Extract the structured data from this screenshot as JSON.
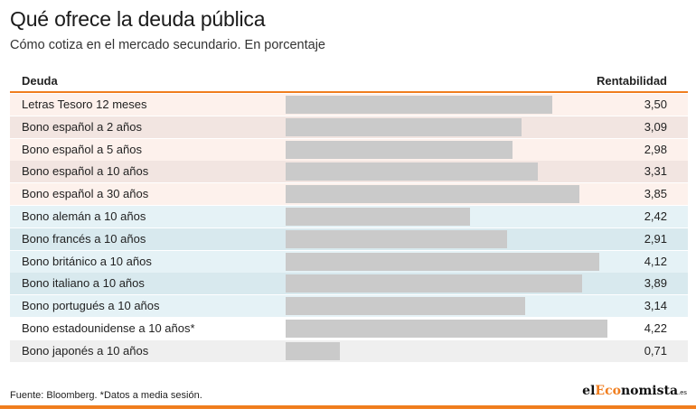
{
  "title": "Qué ofrece la deuda pública",
  "subtitle": "Cómo cotiza en el mercado secundario. En porcentaje",
  "table": {
    "col_name_header": "Deuda",
    "col_value_header": "Rentabilidad"
  },
  "footer": {
    "source": "Fuente: Bloomberg. *Datos a media sesión.",
    "logo_prefix": "el",
    "logo_accent": "Eco",
    "logo_suffix": "nomista",
    "logo_tld": ".es"
  },
  "colors": {
    "accent": "#f07d1e",
    "bar": "#cacaca",
    "row_bg_spain_a": "#fdf1ec",
    "row_bg_spain_b": "#f2e5e1",
    "row_bg_europe_a": "#e5f2f6",
    "row_bg_europe_b": "#d8e9ee",
    "row_bg_other_a": "#ffffff",
    "row_bg_other_b": "#efefef"
  },
  "chart_data": {
    "type": "bar",
    "orientation": "horizontal",
    "title": "Qué ofrece la deuda pública",
    "subtitle": "Cómo cotiza en el mercado secundario. En porcentaje",
    "categories": [
      "Letras Tesoro 12 meses",
      "Bono español a 2 años",
      "Bono español a 5 años",
      "Bono español a 10 años",
      "Bono español a 30 años",
      "Bono alemán a 10 años",
      "Bono francés a 10 años",
      "Bono británico a 10 años",
      "Bono italiano a 10 años",
      "Bono portugués a 10 años",
      "Bono estadounidense a 10 años*",
      "Bono japonés a 10 años"
    ],
    "values": [
      3.5,
      3.09,
      2.98,
      3.31,
      3.85,
      2.42,
      2.91,
      4.12,
      3.89,
      3.14,
      4.22,
      0.71
    ],
    "value_labels": [
      "3,50",
      "3,09",
      "2,98",
      "3,31",
      "3,85",
      "2,42",
      "2,91",
      "4,12",
      "3,89",
      "3,14",
      "4,22",
      "0,71"
    ],
    "groups": [
      "spain",
      "spain",
      "spain",
      "spain",
      "spain",
      "europe",
      "europe",
      "europe",
      "europe",
      "europe",
      "other",
      "other"
    ],
    "xlim": [
      0,
      4.4
    ]
  }
}
